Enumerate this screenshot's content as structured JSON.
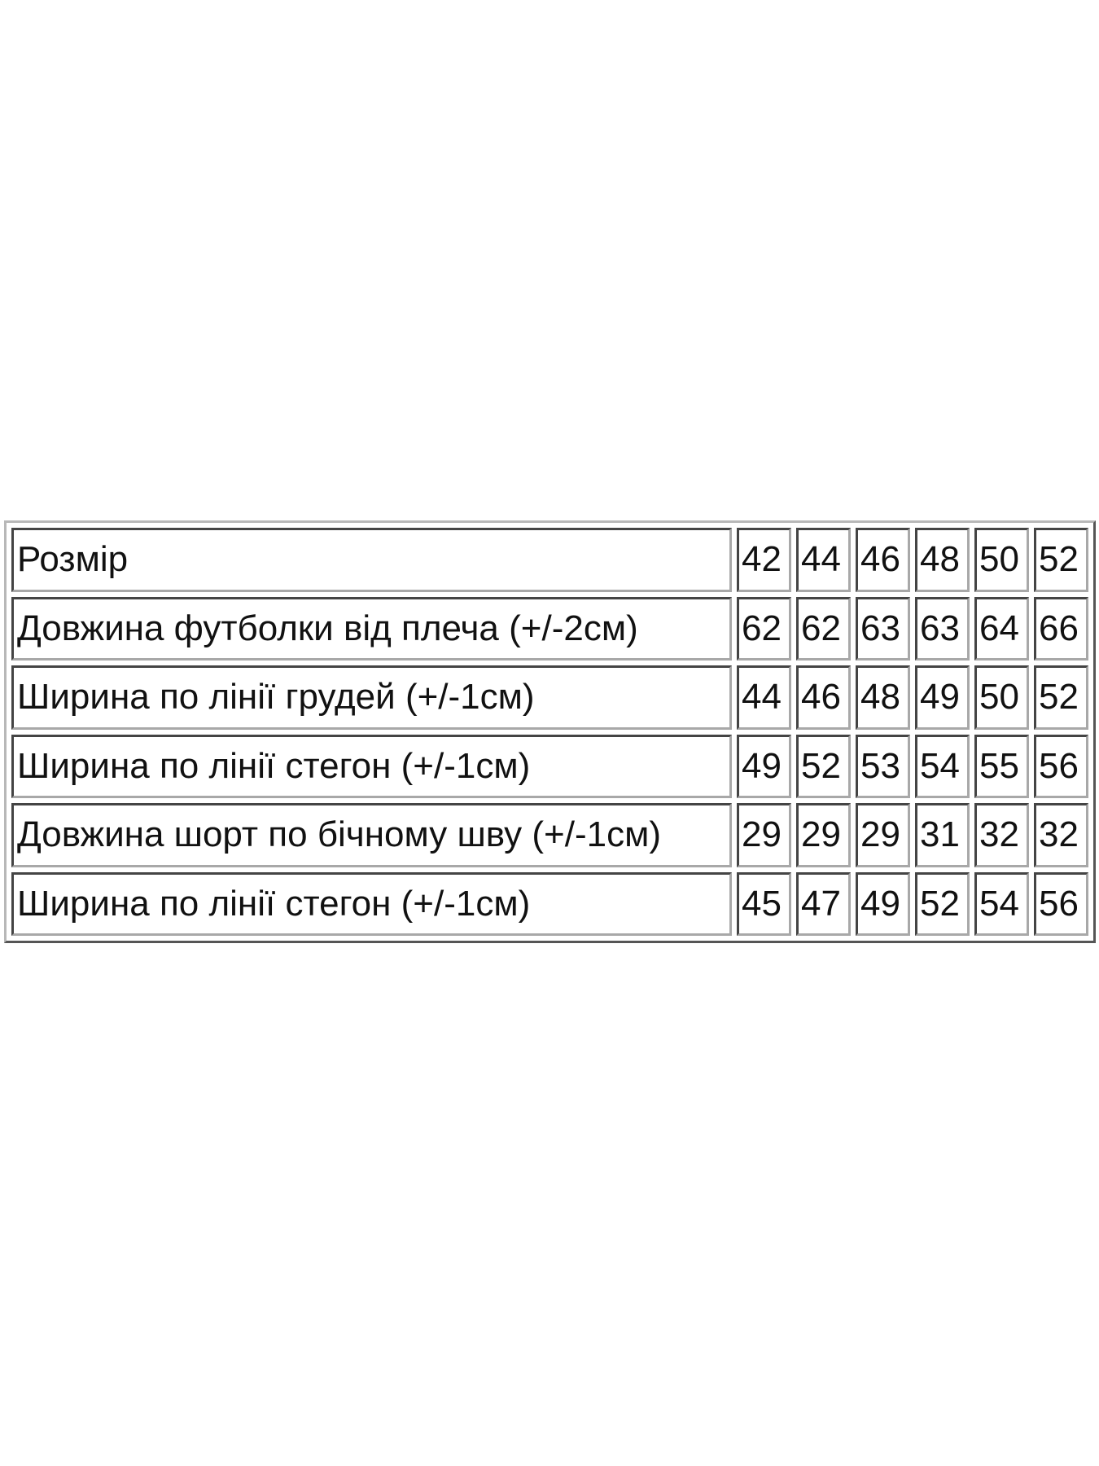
{
  "table": {
    "rows": [
      {
        "label": "Розмір",
        "values": [
          "42",
          "44",
          "46",
          "48",
          "50",
          "52"
        ]
      },
      {
        "label": "Довжина футболки від плеча (+/-2см)",
        "values": [
          "62",
          "62",
          "63",
          "63",
          "64",
          "66"
        ]
      },
      {
        "label": "Ширина по лінії грудей (+/-1см)",
        "values": [
          "44",
          "46",
          "48",
          "49",
          "50",
          "52"
        ]
      },
      {
        "label": "Ширина по лінії стегон (+/-1см)",
        "values": [
          "49",
          "52",
          "53",
          "54",
          "55",
          "56"
        ]
      },
      {
        "label": "Довжина шорт по бічному шву (+/-1см)",
        "values": [
          "29",
          "29",
          "29",
          "31",
          "32",
          "32"
        ]
      },
      {
        "label": "Ширина по лінії стегон (+/-1см)",
        "values": [
          "45",
          "47",
          "49",
          "52",
          "54",
          "56"
        ]
      }
    ]
  }
}
